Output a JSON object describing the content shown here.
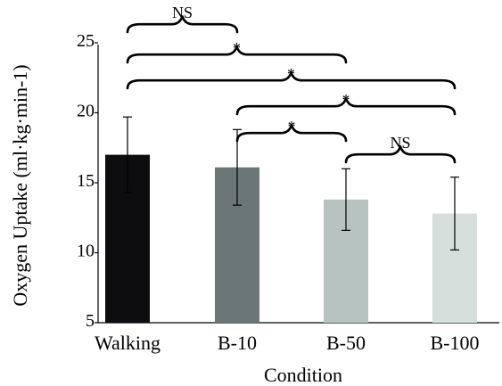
{
  "chart_data": {
    "type": "bar",
    "title": "",
    "xlabel": "Condition",
    "ylabel": "Oxygen Uptake (ml·kg·min-1)",
    "ylim": [
      5,
      25
    ],
    "yticks": [
      5,
      10,
      15,
      20,
      25
    ],
    "categories": [
      "Walking",
      "B-10",
      "B-50",
      "B-100"
    ],
    "values": [
      17.0,
      16.1,
      13.8,
      12.8
    ],
    "errors": [
      2.7,
      2.7,
      2.2,
      2.6
    ],
    "colors": [
      "#0d0d10",
      "#6b7677",
      "#b7c3c0",
      "#d6dfdc"
    ],
    "grid": false,
    "comparisons": [
      {
        "from": 0,
        "to": 1,
        "label": "NS"
      },
      {
        "from": 0,
        "to": 2,
        "label": "*"
      },
      {
        "from": 0,
        "to": 3,
        "label": "*"
      },
      {
        "from": 1,
        "to": 3,
        "label": "*"
      },
      {
        "from": 1,
        "to": 2,
        "label": "*"
      },
      {
        "from": 2,
        "to": 3,
        "label": "NS"
      }
    ]
  }
}
